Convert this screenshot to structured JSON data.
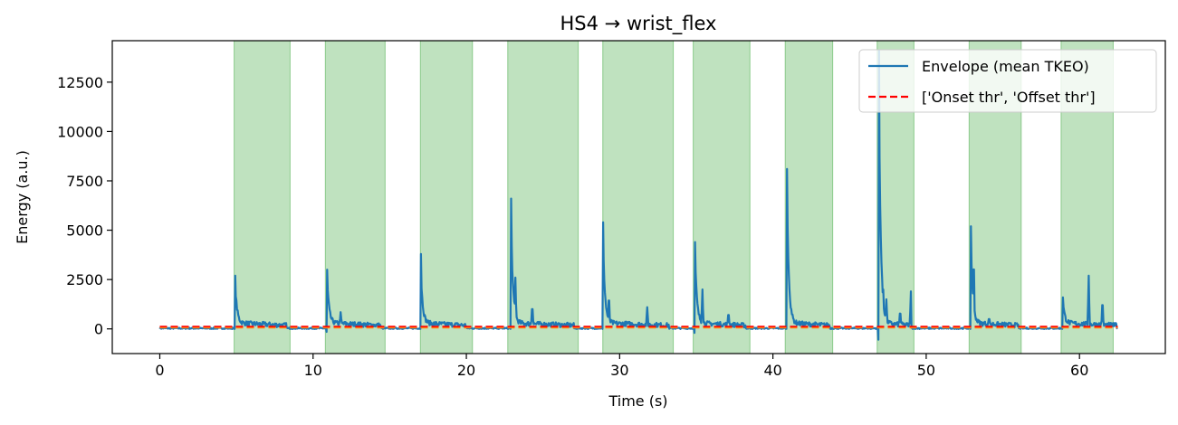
{
  "chart_data": {
    "type": "line",
    "title": "HS4 → wrist_flex",
    "xlabel": "Time (s)",
    "ylabel": "Energy (a.u.)",
    "xlim": [
      -3.1,
      65.6
    ],
    "ylim": [
      -1250,
      14600
    ],
    "xticks": [
      0,
      10,
      20,
      30,
      40,
      50,
      60
    ],
    "yticks": [
      0,
      2500,
      5000,
      7500,
      10000,
      12500
    ],
    "grid": false,
    "legend_position": "top-right",
    "colors": {
      "envelope": "#1f77b4",
      "onset": "#ff0000",
      "offset": "#ff7f0e",
      "shade": "#2ca02c"
    },
    "legend": [
      {
        "label": "Envelope (mean TKEO)",
        "style": "solid",
        "color": "#1f77b4"
      },
      {
        "label": "['Onset thr', 'Offset thr']",
        "style": "dashed",
        "color": "#ff0000"
      }
    ],
    "thresholds": {
      "onset": 120,
      "offset": 70
    },
    "active_segments": [
      [
        4.85,
        8.5
      ],
      [
        10.8,
        14.7
      ],
      [
        17.0,
        20.4
      ],
      [
        22.7,
        27.3
      ],
      [
        28.9,
        33.5
      ],
      [
        34.8,
        38.5
      ],
      [
        40.8,
        43.9
      ],
      [
        46.8,
        49.2
      ],
      [
        52.8,
        56.2
      ],
      [
        58.8,
        62.2
      ]
    ],
    "bursts": [
      {
        "onset": 4.9,
        "end": 8.3,
        "peak": 2700,
        "dip": 0,
        "bumps": []
      },
      {
        "onset": 10.9,
        "end": 14.4,
        "peak": 3000,
        "dip": -150,
        "bumps": [
          [
            11.8,
            850
          ]
        ]
      },
      {
        "onset": 17.0,
        "end": 20.0,
        "peak": 3800,
        "dip": 0,
        "bumps": []
      },
      {
        "onset": 22.9,
        "end": 27.0,
        "peak": 6600,
        "dip": 0,
        "bumps": [
          [
            23.2,
            2600
          ],
          [
            24.3,
            1300
          ]
        ]
      },
      {
        "onset": 28.9,
        "end": 33.2,
        "peak": 5400,
        "dip": 0,
        "bumps": [
          [
            29.3,
            1900
          ],
          [
            31.8,
            1100
          ]
        ]
      },
      {
        "onset": 34.9,
        "end": 38.2,
        "peak": 4400,
        "dip": -200,
        "bumps": [
          [
            35.4,
            2000
          ],
          [
            37.1,
            900
          ]
        ]
      },
      {
        "onset": 40.9,
        "end": 43.7,
        "peak": 8100,
        "dip": 0,
        "bumps": [
          [
            41.2,
            1000
          ]
        ]
      },
      {
        "onset": 46.9,
        "end": 49.0,
        "peak": 14100,
        "dip": -550,
        "bumps": [
          [
            47.2,
            2000
          ],
          [
            47.4,
            1500
          ],
          [
            48.3,
            1000
          ],
          [
            49.0,
            1900
          ]
        ]
      },
      {
        "onset": 52.9,
        "end": 56.0,
        "peak": 5200,
        "dip": 0,
        "bumps": [
          [
            53.1,
            4100
          ],
          [
            54.1,
            600
          ]
        ]
      },
      {
        "onset": 58.9,
        "end": 62.4,
        "peak": 1600,
        "dip": 0,
        "bumps": [
          [
            60.6,
            2700
          ],
          [
            61.5,
            1600
          ]
        ]
      }
    ],
    "x_end": 62.5
  }
}
